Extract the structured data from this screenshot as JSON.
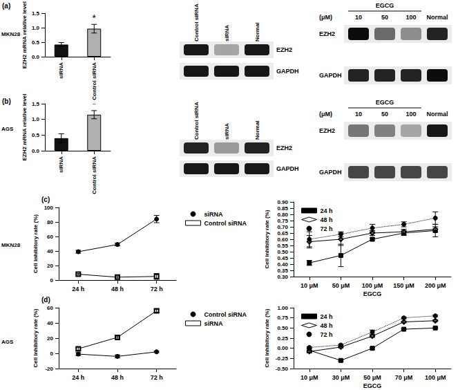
{
  "rows": [
    {
      "label": "(a)",
      "cell_line": "MKN28"
    },
    {
      "label": "(b)",
      "cell_line": "AGS"
    },
    {
      "label": "(c)",
      "cell_line": "MKN28"
    },
    {
      "label": "(d)",
      "cell_line": "AGS"
    }
  ],
  "blots": [
    {
      "lanes": [
        "Control siRNA",
        "siRNA",
        "Normal"
      ],
      "rows": [
        {
          "name": "EZH2",
          "intensity": [
            0.9,
            0.3,
            0.9
          ]
        },
        {
          "name": "GAPDH",
          "intensity": [
            0.9,
            0.9,
            0.9
          ]
        }
      ]
    },
    {
      "treatment": "EGCG",
      "unit": "(μM)",
      "lanes": [
        "10",
        "50",
        "100",
        "Normal"
      ],
      "rows": [
        {
          "name": "EZH2",
          "intensity": [
            0.95,
            0.55,
            0.4,
            0.85
          ]
        },
        {
          "name": "GAPDH",
          "intensity": [
            0.85,
            0.85,
            0.85,
            0.95
          ]
        }
      ]
    },
    {
      "lanes": [
        "Control siRNA",
        "siRNA",
        "Normal"
      ],
      "rows": [
        {
          "name": "EZH2",
          "intensity": [
            0.85,
            0.35,
            0.85
          ]
        },
        {
          "name": "GAPDH",
          "intensity": [
            0.9,
            0.9,
            0.9
          ]
        }
      ]
    },
    {
      "treatment": "EGCG",
      "unit": "(μM)",
      "lanes": [
        "10",
        "50",
        "100",
        "Normal"
      ],
      "rows": [
        {
          "name": "EZH2",
          "intensity": [
            0.5,
            0.45,
            0.3,
            0.9
          ]
        },
        {
          "name": "GAPDH",
          "intensity": [
            0.7,
            0.7,
            0.7,
            0.7
          ]
        }
      ]
    }
  ],
  "chart_data": [
    {
      "type": "bar",
      "y_label": "EZH2 mRNA relative level",
      "categories": [
        "siRNA",
        "Control siRNA"
      ],
      "values": [
        0.42,
        0.97
      ],
      "errors": [
        0.07,
        0.15
      ],
      "colors": [
        "#111111",
        "#b0b0b0"
      ],
      "ylim": [
        0,
        1.5
      ],
      "yticks": [
        {
          "value": 0,
          "label": "0.0"
        },
        0.5,
        {
          "value": 1,
          "label": "1.0"
        },
        1.5
      ],
      "annotations": [
        {
          "category": "Control siRNA",
          "text": "*"
        }
      ]
    },
    {
      "type": "bar",
      "y_label": "EZH2 mRNA relative level",
      "categories": [
        "siRNA",
        "Control siRNA"
      ],
      "values": [
        0.4,
        1.15
      ],
      "errors": [
        0.14,
        0.13
      ],
      "colors": [
        "#111111",
        "#b0b0b0"
      ],
      "ylim": [
        0,
        1.5
      ],
      "yticks": [
        {
          "value": 0,
          "label": "0.0"
        },
        0.5,
        {
          "value": 1,
          "label": "1.0"
        },
        1.5
      ],
      "annotations": [
        {
          "category": "Control siRNA",
          "text": "*"
        }
      ]
    },
    {
      "type": "line",
      "y_label": "Cell inhibitory rate (%)",
      "categories": [
        "24 h",
        "48 h",
        "72 h"
      ],
      "series": [
        {
          "name": "siRNA",
          "color": "#000000",
          "marker": "circle",
          "line_style": "solid",
          "values": [
            39,
            49,
            84
          ],
          "errors": [
            2,
            2,
            5
          ]
        },
        {
          "name": "Control siRNA",
          "color": "#000000",
          "marker": "open_square",
          "line_style": "solid",
          "values": [
            8,
            4,
            5
          ],
          "errors": [
            1,
            1,
            4
          ]
        }
      ],
      "ylim": [
        0,
        100
      ],
      "yticks": [
        0,
        20,
        40,
        60,
        80,
        100
      ],
      "legend": "right"
    },
    {
      "type": "line",
      "y_label": "Cell inhibitory rate (%)",
      "x_label": "EGCG",
      "categories": [
        "10 μM",
        "50 μM",
        "100 μM",
        "150 μM",
        "200 μM"
      ],
      "series": [
        {
          "name": "24 h",
          "color": "#000000",
          "marker": "square",
          "line_style": "solid",
          "values": [
            0.41,
            0.47,
            0.6,
            0.65,
            0.67
          ],
          "errors": [
            0.02,
            0.09,
            0.01,
            0.02,
            0.05
          ]
        },
        {
          "name": "48 h",
          "color": "#000000",
          "marker": "open_diamond",
          "line_style": "solid",
          "values": [
            0.58,
            0.6,
            0.65,
            0.66,
            0.68
          ],
          "errors": [
            0.05,
            0.05,
            0.02,
            0.02,
            0.02
          ]
        },
        {
          "name": "72 h",
          "color": "#000000",
          "marker": "circle",
          "line_style": "dotted",
          "values": [
            0.6,
            0.64,
            0.69,
            0.72,
            0.77
          ],
          "errors": [
            0.06,
            0.02,
            0.03,
            0.02,
            0.05
          ]
        }
      ],
      "ylim": [
        0.3,
        0.9
      ],
      "yticks": [
        {
          "value": 0.3,
          "label": "0.30"
        },
        0.35,
        {
          "value": 0.4,
          "label": "0.40"
        },
        0.45,
        {
          "value": 0.5,
          "label": "0.50"
        },
        0.55,
        {
          "value": 0.6,
          "label": "0.60"
        },
        0.65,
        {
          "value": 0.7,
          "label": "0.70"
        },
        0.75,
        {
          "value": 0.8,
          "label": "0.80"
        },
        0.85,
        {
          "value": 0.9,
          "label": "0.90"
        }
      ],
      "legend": "top-left"
    },
    {
      "type": "line",
      "y_label": "Cell inhibitory rate (%)",
      "categories": [
        "24 h",
        "48 h",
        "72 h"
      ],
      "series": [
        {
          "name": "Control siRNA",
          "color": "#000000",
          "marker": "circle",
          "line_style": "solid",
          "values": [
            -1,
            -4,
            2
          ],
          "errors": [
            2,
            2,
            1
          ]
        },
        {
          "name": "siRNA",
          "color": "#000000",
          "marker": "open_square",
          "line_style": "solid",
          "values": [
            6,
            21,
            56
          ],
          "errors": [
            2,
            1,
            2
          ]
        }
      ],
      "ylim": [
        -20,
        60
      ],
      "yticks": [
        -20,
        0,
        20,
        40,
        60
      ],
      "legend": "right"
    },
    {
      "type": "line",
      "y_label": "Cell inhibitory rate (%)",
      "x_label": "EGCG",
      "categories": [
        "10 μM",
        "30 μM",
        "50 μM",
        "70 μM",
        "100 μM"
      ],
      "series": [
        {
          "name": "24 h",
          "color": "#000000",
          "marker": "square",
          "line_style": "solid",
          "values": [
            -0.05,
            -0.3,
            0.0,
            0.47,
            0.5
          ],
          "errors": [
            0.06,
            0.02,
            0.02,
            0.01,
            0.01
          ]
        },
        {
          "name": "48 h",
          "color": "#000000",
          "marker": "open_diamond",
          "line_style": "solid",
          "values": [
            -0.08,
            0.03,
            0.3,
            0.65,
            0.68
          ],
          "errors": [
            0.03,
            0.02,
            0.03,
            0.02,
            0.02
          ]
        },
        {
          "name": "72 h",
          "color": "#000000",
          "marker": "circle",
          "line_style": "dotted",
          "values": [
            0.02,
            0.08,
            0.4,
            0.75,
            0.8
          ],
          "errors": [
            0.02,
            0.02,
            0.05,
            0.02,
            0.02
          ]
        }
      ],
      "ylim": [
        -0.5,
        1.0
      ],
      "yticks": [
        {
          "value": -0.5,
          "label": "-0.50"
        },
        -0.25,
        {
          "value": 0,
          "label": "0.00"
        },
        0.25,
        {
          "value": 0.5,
          "label": "0.50"
        },
        0.75,
        {
          "value": 1,
          "label": "1.00"
        }
      ],
      "legend": "top-left"
    }
  ]
}
